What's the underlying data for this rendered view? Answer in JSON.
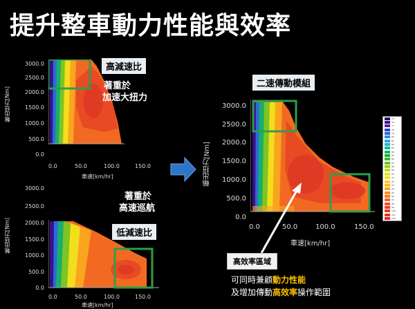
{
  "title": "提升整車動力性能與效率",
  "plots": {
    "y_ticks_small": [
      "3000.0",
      "2500.0",
      "2000.0",
      "1500.0",
      "1000.0",
      "500.0",
      "0.0"
    ],
    "x_ticks_small": [
      "0.0",
      "50.0",
      "100.0",
      "150.0"
    ],
    "y_ticks_large": [
      "3000.0",
      "2500.0",
      "2000.0",
      "1500.0",
      "1000.0",
      "500.0",
      "0.0"
    ],
    "x_ticks_large": [
      "0.0",
      "50.0",
      "100.0",
      "150.0"
    ],
    "ylabel": "輸出扭力[Nm]",
    "xlabel": "車速[km/hr]"
  },
  "top_plot": {
    "badge": "高減速比",
    "note_line1": "著重於",
    "note_line2": "加速大扭力"
  },
  "bottom_plot": {
    "badge": "低減速比",
    "note_line1": "著重於",
    "note_line2": "高速巡航"
  },
  "right_plot": {
    "badge": "二速傳動模組",
    "callout": "高效率區域"
  },
  "bottom_note": {
    "line1_pre": "可同時兼顧",
    "line1_hl": "動力性能",
    "line2_pre": "及增加傳動",
    "line2_hl": "高效率",
    "line2_post": "操作範圍"
  },
  "legend": {
    "labels": [
      "75",
      "76",
      "77",
      "78",
      "79",
      "80",
      "81",
      "82",
      "83",
      "84",
      "85",
      "86",
      "87",
      "88",
      "89",
      "90",
      "91",
      "92",
      "93",
      "94",
      "95",
      "96",
      "97",
      "98",
      "99",
      "100",
      "101",
      "102"
    ],
    "colors": [
      "#2a0a5a",
      "#3b0f8c",
      "#4b1eb3",
      "#3440c4",
      "#2a67d6",
      "#2b8be0",
      "#2aa7e3",
      "#1fb5c8",
      "#15b79b",
      "#12b46e",
      "#1aae3d",
      "#3fb32a",
      "#6cc021",
      "#9ad11a",
      "#c4de14",
      "#e6e514",
      "#f6e01c",
      "#fbcf1f",
      "#fcba1f",
      "#fca31f",
      "#fb8d21",
      "#f97823",
      "#f56525",
      "#f05326",
      "#eb4426",
      "#e63a26",
      "#e03226",
      "#dc2d26"
    ]
  },
  "colors": {
    "highlight_box": "#2e9e4a",
    "arrow_blue": "#2e75c8",
    "accent_text": "#ffc000"
  }
}
